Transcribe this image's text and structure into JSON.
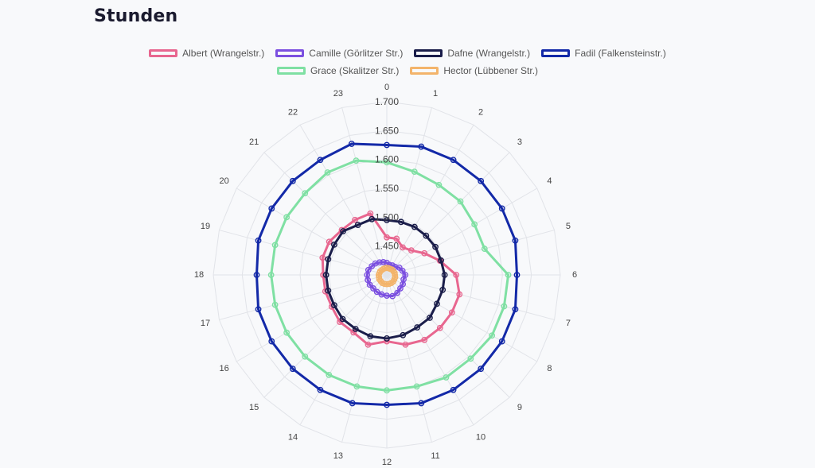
{
  "page": {
    "title": "Stunden"
  },
  "chart_data": {
    "type": "radar",
    "categories": [
      "0",
      "1",
      "2",
      "3",
      "4",
      "5",
      "6",
      "7",
      "8",
      "9",
      "10",
      "11",
      "12",
      "13",
      "14",
      "15",
      "16",
      "17",
      "18",
      "19",
      "20",
      "21",
      "22",
      "23"
    ],
    "radial_range": [
      1.4,
      1.7
    ],
    "radial_ticks": [
      1.7,
      1.65,
      1.6,
      1.55,
      1.5,
      1.45
    ],
    "radial_tick_labels": [
      "1.700",
      "1.650",
      "1.600",
      "1.550",
      "1.500",
      "1.450"
    ],
    "series": [
      {
        "name": "Albert (Wrangelstr.)",
        "color": "#e8668f",
        "values": [
          1.465,
          1.465,
          1.455,
          1.46,
          1.475,
          1.495,
          1.52,
          1.53,
          1.53,
          1.53,
          1.53,
          1.525,
          1.515,
          1.525,
          1.515,
          1.515,
          1.51,
          1.51,
          1.51,
          1.515,
          1.515,
          1.51,
          1.51,
          1.51
        ]
      },
      {
        "name": "Camille (Görlitzer Str.)",
        "color": "#7b4fe0",
        "values": [
          1.421,
          1.418,
          1.419,
          1.42,
          1.425,
          1.428,
          1.432,
          1.43,
          1.432,
          1.433,
          1.436,
          1.438,
          1.436,
          1.435,
          1.434,
          1.433,
          1.434,
          1.434,
          1.434,
          1.433,
          1.43,
          1.428,
          1.425,
          1.423
        ]
      },
      {
        "name": "Dafne (Wrangelstr.)",
        "color": "#1a1d4a",
        "values": [
          1.495,
          1.495,
          1.496,
          1.496,
          1.497,
          1.497,
          1.5,
          1.5,
          1.5,
          1.505,
          1.505,
          1.508,
          1.51,
          1.51,
          1.508,
          1.508,
          1.505,
          1.505,
          1.505,
          1.505,
          1.505,
          1.507,
          1.5,
          1.5
        ]
      },
      {
        "name": "Fadil (Falkensteinstr.)",
        "color": "#1329a8",
        "values": [
          1.625,
          1.63,
          1.63,
          1.63,
          1.63,
          1.63,
          1.625,
          1.63,
          1.63,
          1.63,
          1.63,
          1.63,
          1.625,
          1.63,
          1.63,
          1.63,
          1.63,
          1.63,
          1.625,
          1.63,
          1.63,
          1.63,
          1.63,
          1.635
        ]
      },
      {
        "name": "Grace (Skalitzer Str.)",
        "color": "#7fe0a3",
        "values": [
          1.595,
          1.585,
          1.58,
          1.58,
          1.575,
          1.575,
          1.61,
          1.61,
          1.61,
          1.605,
          1.605,
          1.6,
          1.6,
          1.6,
          1.6,
          1.6,
          1.6,
          1.6,
          1.6,
          1.6,
          1.6,
          1.6,
          1.605,
          1.605
        ]
      },
      {
        "name": "Hector (Lübbener Str.)",
        "color": "#f3b46b",
        "values": [
          1.412,
          1.412,
          1.412,
          1.413,
          1.413,
          1.414,
          1.414,
          1.415,
          1.415,
          1.416,
          1.416,
          1.416,
          1.416,
          1.416,
          1.416,
          1.415,
          1.415,
          1.414,
          1.414,
          1.413,
          1.413,
          1.412,
          1.412,
          1.412
        ]
      }
    ]
  }
}
